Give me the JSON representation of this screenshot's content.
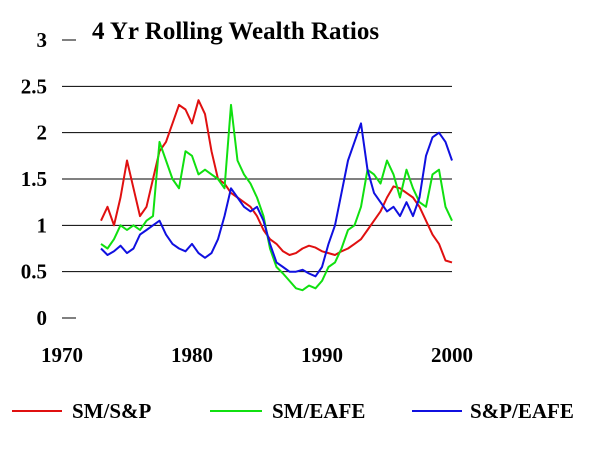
{
  "chart_data": {
    "type": "line",
    "title": "4 Yr Rolling Wealth Ratios",
    "xlabel": "",
    "ylabel": "",
    "xlim": [
      1970,
      2000
    ],
    "ylim": [
      0,
      3
    ],
    "x_ticks": [
      "1970",
      "1980",
      "1990",
      "2000"
    ],
    "y_ticks": [
      "0",
      "0.5",
      "1",
      "1.5",
      "2",
      "2.5",
      "3"
    ],
    "grid": "horizontal",
    "legend_position": "bottom",
    "series": [
      {
        "name": "SM/S&P",
        "color": "#e01010",
        "x": [
          1973.0,
          1973.5,
          1974.0,
          1974.5,
          1975.0,
          1975.5,
          1976.0,
          1976.5,
          1977.0,
          1977.5,
          1978.0,
          1978.5,
          1979.0,
          1979.5,
          1980.0,
          1980.5,
          1981.0,
          1981.5,
          1982.0,
          1982.5,
          1983.0,
          1983.5,
          1984.0,
          1984.5,
          1985.0,
          1985.5,
          1986.0,
          1986.5,
          1987.0,
          1987.5,
          1988.0,
          1988.5,
          1989.0,
          1989.5,
          1990.0,
          1990.5,
          1991.0,
          1991.5,
          1992.0,
          1992.5,
          1993.0,
          1993.5,
          1994.0,
          1994.5,
          1995.0,
          1995.5,
          1996.0,
          1996.5,
          1997.0,
          1997.5,
          1998.0,
          1998.5,
          1999.0,
          1999.5,
          2000.0
        ],
        "values": [
          1.05,
          1.2,
          1.0,
          1.3,
          1.7,
          1.4,
          1.1,
          1.2,
          1.5,
          1.8,
          1.9,
          2.1,
          2.3,
          2.25,
          2.1,
          2.35,
          2.2,
          1.8,
          1.5,
          1.45,
          1.35,
          1.3,
          1.25,
          1.2,
          1.1,
          0.95,
          0.85,
          0.8,
          0.72,
          0.68,
          0.7,
          0.75,
          0.78,
          0.76,
          0.72,
          0.7,
          0.68,
          0.72,
          0.75,
          0.8,
          0.85,
          0.95,
          1.05,
          1.15,
          1.3,
          1.42,
          1.4,
          1.35,
          1.3,
          1.2,
          1.05,
          0.9,
          0.8,
          0.62,
          0.6
        ]
      },
      {
        "name": "SM/EAFE",
        "color": "#10e010",
        "x": [
          1973.0,
          1973.5,
          1974.0,
          1974.5,
          1975.0,
          1975.5,
          1976.0,
          1976.5,
          1977.0,
          1977.5,
          1978.0,
          1978.5,
          1979.0,
          1979.5,
          1980.0,
          1980.5,
          1981.0,
          1981.5,
          1982.0,
          1982.5,
          1983.0,
          1983.5,
          1984.0,
          1984.5,
          1985.0,
          1985.5,
          1986.0,
          1986.5,
          1987.0,
          1987.5,
          1988.0,
          1988.5,
          1989.0,
          1989.5,
          1990.0,
          1990.5,
          1991.0,
          1991.5,
          1992.0,
          1992.5,
          1993.0,
          1993.5,
          1994.0,
          1994.5,
          1995.0,
          1995.5,
          1996.0,
          1996.5,
          1997.0,
          1997.5,
          1998.0,
          1998.5,
          1999.0,
          1999.5,
          2000.0
        ],
        "values": [
          0.8,
          0.75,
          0.85,
          1.0,
          0.95,
          1.0,
          0.95,
          1.05,
          1.1,
          1.9,
          1.7,
          1.5,
          1.4,
          1.8,
          1.75,
          1.55,
          1.6,
          1.55,
          1.5,
          1.4,
          2.3,
          1.7,
          1.55,
          1.45,
          1.3,
          1.1,
          0.75,
          0.55,
          0.48,
          0.4,
          0.32,
          0.3,
          0.35,
          0.32,
          0.4,
          0.55,
          0.6,
          0.75,
          0.95,
          1.0,
          1.2,
          1.6,
          1.55,
          1.45,
          1.7,
          1.55,
          1.3,
          1.6,
          1.4,
          1.25,
          1.2,
          1.55,
          1.6,
          1.2,
          1.05
        ]
      },
      {
        "name": "S&P/EAFE",
        "color": "#1010e0",
        "x": [
          1973.0,
          1973.5,
          1974.0,
          1974.5,
          1975.0,
          1975.5,
          1976.0,
          1976.5,
          1977.0,
          1977.5,
          1978.0,
          1978.5,
          1979.0,
          1979.5,
          1980.0,
          1980.5,
          1981.0,
          1981.5,
          1982.0,
          1982.5,
          1983.0,
          1983.5,
          1984.0,
          1984.5,
          1985.0,
          1985.5,
          1986.0,
          1986.5,
          1987.0,
          1987.5,
          1988.0,
          1988.5,
          1989.0,
          1989.5,
          1990.0,
          1990.5,
          1991.0,
          1991.5,
          1992.0,
          1992.5,
          1993.0,
          1993.5,
          1994.0,
          1994.5,
          1995.0,
          1995.5,
          1996.0,
          1996.5,
          1997.0,
          1997.5,
          1998.0,
          1998.5,
          1999.0,
          1999.5,
          2000.0
        ],
        "values": [
          0.75,
          0.68,
          0.72,
          0.78,
          0.7,
          0.75,
          0.9,
          0.95,
          1.0,
          1.05,
          0.9,
          0.8,
          0.75,
          0.72,
          0.8,
          0.7,
          0.65,
          0.7,
          0.85,
          1.1,
          1.4,
          1.3,
          1.2,
          1.15,
          1.2,
          1.05,
          0.8,
          0.6,
          0.55,
          0.5,
          0.5,
          0.52,
          0.48,
          0.45,
          0.55,
          0.8,
          1.0,
          1.35,
          1.7,
          1.9,
          2.1,
          1.6,
          1.35,
          1.25,
          1.15,
          1.2,
          1.1,
          1.25,
          1.1,
          1.3,
          1.75,
          1.95,
          2.0,
          1.9,
          1.7
        ]
      }
    ]
  }
}
